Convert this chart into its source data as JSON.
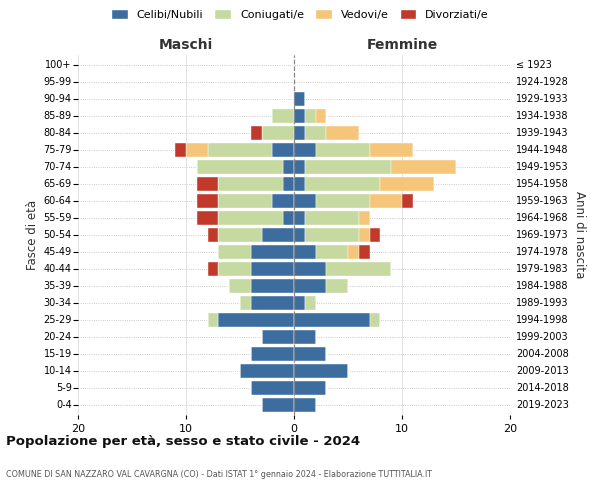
{
  "age_groups": [
    "0-4",
    "5-9",
    "10-14",
    "15-19",
    "20-24",
    "25-29",
    "30-34",
    "35-39",
    "40-44",
    "45-49",
    "50-54",
    "55-59",
    "60-64",
    "65-69",
    "70-74",
    "75-79",
    "80-84",
    "85-89",
    "90-94",
    "95-99",
    "100+"
  ],
  "birth_years": [
    "2019-2023",
    "2014-2018",
    "2009-2013",
    "2004-2008",
    "1999-2003",
    "1994-1998",
    "1989-1993",
    "1984-1988",
    "1979-1983",
    "1974-1978",
    "1969-1973",
    "1964-1968",
    "1959-1963",
    "1954-1958",
    "1949-1953",
    "1944-1948",
    "1939-1943",
    "1934-1938",
    "1929-1933",
    "1924-1928",
    "≤ 1923"
  ],
  "maschi": {
    "celibi": [
      3,
      4,
      5,
      4,
      3,
      7,
      4,
      4,
      4,
      4,
      3,
      1,
      2,
      1,
      1,
      2,
      0,
      0,
      0,
      0,
      0
    ],
    "coniugati": [
      0,
      0,
      0,
      0,
      0,
      1,
      1,
      2,
      3,
      3,
      4,
      6,
      5,
      6,
      8,
      6,
      3,
      2,
      0,
      0,
      0
    ],
    "vedovi": [
      0,
      0,
      0,
      0,
      0,
      0,
      0,
      0,
      0,
      0,
      0,
      0,
      0,
      0,
      0,
      2,
      0,
      0,
      0,
      0,
      0
    ],
    "divorziati": [
      0,
      0,
      0,
      0,
      0,
      0,
      0,
      0,
      1,
      0,
      1,
      2,
      2,
      2,
      0,
      1,
      1,
      0,
      0,
      0,
      0
    ]
  },
  "femmine": {
    "nubili": [
      2,
      3,
      5,
      3,
      2,
      7,
      1,
      3,
      3,
      2,
      1,
      1,
      2,
      1,
      1,
      2,
      1,
      1,
      1,
      0,
      0
    ],
    "coniugate": [
      0,
      0,
      0,
      0,
      0,
      1,
      1,
      2,
      6,
      3,
      5,
      5,
      5,
      7,
      8,
      5,
      2,
      1,
      0,
      0,
      0
    ],
    "vedove": [
      0,
      0,
      0,
      0,
      0,
      0,
      0,
      0,
      0,
      1,
      1,
      1,
      3,
      5,
      6,
      4,
      3,
      1,
      0,
      0,
      0
    ],
    "divorziate": [
      0,
      0,
      0,
      0,
      0,
      0,
      0,
      0,
      0,
      1,
      1,
      0,
      1,
      0,
      0,
      0,
      0,
      0,
      0,
      0,
      0
    ]
  },
  "colors": {
    "celibi": "#3d6d9e",
    "coniugati": "#c5d9a0",
    "vedovi": "#f5c67a",
    "divorziati": "#c0392b"
  },
  "xlim": 20,
  "title": "Popolazione per età, sesso e stato civile - 2024",
  "subtitle": "COMUNE DI SAN NAZZARO VAL CAVARGNA (CO) - Dati ISTAT 1° gennaio 2024 - Elaborazione TUTTITALIA.IT",
  "ylabel_left": "Fasce di età",
  "ylabel_right": "Anni di nascita",
  "xlabel_maschi": "Maschi",
  "xlabel_femmine": "Femmine"
}
